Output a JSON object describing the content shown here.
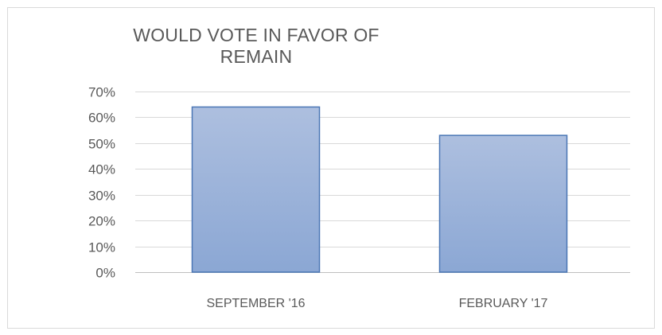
{
  "chart_data": {
    "type": "bar",
    "title": "WOULD VOTE IN FAVOR OF REMAIN",
    "categories": [
      "SEPTEMBER '16",
      "FEBRUARY '17"
    ],
    "values": [
      0.64,
      0.53
    ],
    "ylim": [
      0,
      0.7
    ],
    "yticks": [
      "0%",
      "10%",
      "20%",
      "30%",
      "40%",
      "50%",
      "60%",
      "70%"
    ],
    "grid": true,
    "legend": "none",
    "bar_color_top": "#adbfdf",
    "bar_color_bottom": "#8ba7d4",
    "bar_border": "#4a76b5",
    "gridline_color": "#d9d9d9",
    "text_color": "#595959"
  }
}
